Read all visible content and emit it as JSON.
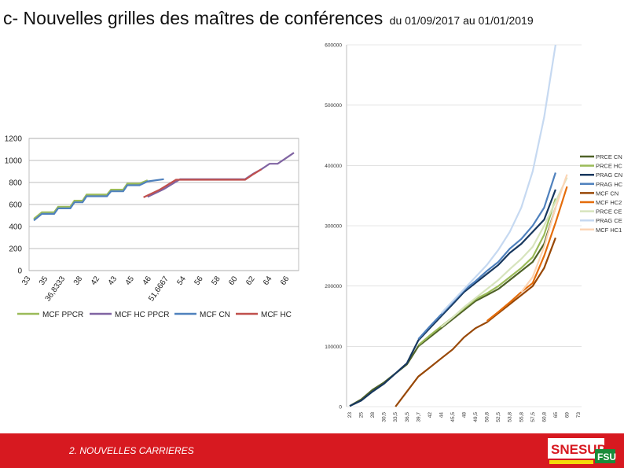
{
  "header": {
    "title": "c- Nouvelles grilles des maîtres de conférences",
    "subtitle": "du 01/09/2017 au 01/01/2019"
  },
  "footer": {
    "section": "2. NOUVELLES CARRIERES",
    "logo_main": "SNESUP",
    "logo_sub": "FSU"
  },
  "colors": {
    "footer_bg": "#d71920"
  },
  "chart_data": [
    {
      "type": "line",
      "title": "",
      "xlabel": "",
      "ylabel": "",
      "ylim": [
        0,
        1200
      ],
      "yticks": [
        "0",
        "200",
        "400",
        "600",
        "800",
        "1000",
        "1200"
      ],
      "grid": true,
      "legend": "bottom",
      "categories": [
        "33",
        "35",
        "36,8333",
        "38",
        "42",
        "43",
        "45",
        "46",
        "51,6667",
        "54",
        "56",
        "58",
        "60",
        "62",
        "64",
        "66"
      ],
      "series": [
        {
          "name": "MCF PPCR",
          "color": "#9bbb59",
          "points": [
            [
              0,
              470
            ],
            [
              1,
              530
            ],
            [
              2.5,
              530
            ],
            [
              3,
              580
            ],
            [
              4.5,
              580
            ],
            [
              5,
              635
            ],
            [
              6,
              635
            ],
            [
              6.5,
              690
            ],
            [
              9,
              690
            ],
            [
              9.5,
              735
            ],
            [
              11,
              735
            ],
            [
              11.5,
              790
            ],
            [
              13,
              790
            ],
            [
              14,
              820
            ]
          ]
        },
        {
          "name": "MCF HC PPCR",
          "color": "#8064a2",
          "points": [
            [
              14,
              670
            ],
            [
              16,
              740
            ],
            [
              18,
              830
            ],
            [
              26,
              830
            ],
            [
              27,
              880
            ],
            [
              28,
              920
            ],
            [
              29,
              970
            ],
            [
              30,
              970
            ],
            [
              31,
              1020
            ],
            [
              32,
              1070
            ]
          ]
        },
        {
          "name": "MCF CN",
          "color": "#4f81bd",
          "points": [
            [
              0,
              455
            ],
            [
              1,
              515
            ],
            [
              2.5,
              515
            ],
            [
              3,
              565
            ],
            [
              4.5,
              565
            ],
            [
              5,
              620
            ],
            [
              6,
              620
            ],
            [
              6.5,
              675
            ],
            [
              9,
              675
            ],
            [
              9.5,
              720
            ],
            [
              11,
              720
            ],
            [
              11.5,
              775
            ],
            [
              13,
              775
            ],
            [
              14,
              810
            ],
            [
              16,
              830
            ]
          ]
        },
        {
          "name": "MCF HC",
          "color": "#c0504d",
          "points": [
            [
              13.5,
              665
            ],
            [
              15.5,
              735
            ],
            [
              17.5,
              825
            ],
            [
              26,
              825
            ],
            [
              27,
              875
            ],
            [
              28,
              920
            ]
          ]
        }
      ]
    },
    {
      "type": "line",
      "title": "",
      "xlabel": "",
      "ylabel": "",
      "ylim": [
        0,
        600000
      ],
      "yticks": [
        "0",
        "100000",
        "200000",
        "300000",
        "400000",
        "500000",
        "600000"
      ],
      "grid": true,
      "legend": "right",
      "categories": [
        "23",
        "25",
        "28",
        "30,5",
        "33,5",
        "36,5",
        "39,7",
        "42",
        "44",
        "45,5",
        "48",
        "49,5",
        "50,8",
        "52,5",
        "53,8",
        "55,8",
        "57,5",
        "60,8",
        "65",
        "69",
        "73"
      ],
      "series": [
        {
          "name": "PRCE CN",
          "color": "#4f6228",
          "points": [
            [
              0,
              1000
            ],
            [
              1,
              12000
            ],
            [
              2,
              28000
            ],
            [
              3,
              40000
            ],
            [
              4,
              55000
            ],
            [
              5,
              70000
            ],
            [
              6,
              100000
            ],
            [
              7,
              115000
            ],
            [
              8,
              130000
            ],
            [
              9,
              145000
            ],
            [
              10,
              160000
            ],
            [
              11,
              175000
            ],
            [
              12,
              185000
            ],
            [
              13,
              195000
            ],
            [
              14,
              210000
            ],
            [
              15,
              225000
            ],
            [
              16,
              240000
            ],
            [
              17,
              270000
            ],
            [
              18,
              330000
            ]
          ]
        },
        {
          "name": "PRCE HC",
          "color": "#9bbb59",
          "points": [
            [
              6,
              102000
            ],
            [
              7,
              118000
            ],
            [
              8,
              133000
            ],
            [
              9,
              148000
            ],
            [
              10,
              163000
            ],
            [
              11,
              178000
            ],
            [
              12,
              188000
            ],
            [
              13,
              200000
            ],
            [
              14,
              215000
            ],
            [
              15,
              230000
            ],
            [
              16,
              248000
            ],
            [
              17,
              285000
            ],
            [
              18,
              345000
            ]
          ]
        },
        {
          "name": "PRAG CN",
          "color": "#17375e",
          "points": [
            [
              0,
              1000
            ],
            [
              1,
              10000
            ],
            [
              2,
              25000
            ],
            [
              3,
              38000
            ],
            [
              4,
              55000
            ],
            [
              5,
              72000
            ],
            [
              6,
              110000
            ],
            [
              7,
              130000
            ],
            [
              8,
              150000
            ],
            [
              9,
              170000
            ],
            [
              10,
              190000
            ],
            [
              11,
              205000
            ],
            [
              12,
              220000
            ],
            [
              13,
              235000
            ],
            [
              14,
              255000
            ],
            [
              15,
              270000
            ],
            [
              16,
              290000
            ],
            [
              17,
              310000
            ],
            [
              18,
              360000
            ]
          ]
        },
        {
          "name": "PRAG HC",
          "color": "#4f81bd",
          "points": [
            [
              6,
              112000
            ],
            [
              7,
              133000
            ],
            [
              8,
              153000
            ],
            [
              9,
              173000
            ],
            [
              10,
              193000
            ],
            [
              11,
              208000
            ],
            [
              12,
              225000
            ],
            [
              13,
              240000
            ],
            [
              14,
              262000
            ],
            [
              15,
              278000
            ],
            [
              16,
              300000
            ],
            [
              17,
              330000
            ],
            [
              18,
              388000
            ]
          ]
        },
        {
          "name": "MCF CN",
          "color": "#984807",
          "points": [
            [
              4,
              0
            ],
            [
              5,
              25000
            ],
            [
              6,
              50000
            ],
            [
              7,
              65000
            ],
            [
              8,
              80000
            ],
            [
              9,
              95000
            ],
            [
              10,
              115000
            ],
            [
              11,
              130000
            ],
            [
              12,
              140000
            ],
            [
              13,
              155000
            ],
            [
              14,
              170000
            ],
            [
              15,
              185000
            ],
            [
              16,
              200000
            ],
            [
              17,
              230000
            ],
            [
              18,
              280000
            ]
          ]
        },
        {
          "name": "MCF HC2",
          "color": "#e46c0a",
          "points": [
            [
              12,
              142000
            ],
            [
              13,
              157000
            ],
            [
              14,
              173000
            ],
            [
              15,
              190000
            ],
            [
              16,
              205000
            ],
            [
              17,
              250000
            ],
            [
              18,
              305000
            ],
            [
              19,
              365000
            ]
          ]
        },
        {
          "name": "PRCE CE",
          "color": "#d7e4bd",
          "points": [
            [
              8,
              132000
            ],
            [
              9,
              148000
            ],
            [
              10,
              165000
            ],
            [
              11,
              180000
            ],
            [
              12,
              195000
            ],
            [
              13,
              210000
            ],
            [
              14,
              228000
            ],
            [
              15,
              245000
            ],
            [
              16,
              265000
            ],
            [
              17,
              300000
            ],
            [
              18,
              340000
            ],
            [
              19,
              380000
            ]
          ]
        },
        {
          "name": "PRAG CE",
          "color": "#c6d9f1",
          "points": [
            [
              8,
              155000
            ],
            [
              9,
              175000
            ],
            [
              10,
              195000
            ],
            [
              11,
              215000
            ],
            [
              12,
              235000
            ],
            [
              13,
              260000
            ],
            [
              14,
              290000
            ],
            [
              15,
              330000
            ],
            [
              16,
              390000
            ],
            [
              17,
              480000
            ],
            [
              18,
              600000
            ]
          ]
        },
        {
          "name": "MCF HC1",
          "color": "#fcd5b5",
          "points": [
            [
              15,
              190000
            ],
            [
              16,
              215000
            ],
            [
              17,
              265000
            ],
            [
              18,
              330000
            ],
            [
              19,
              385000
            ]
          ]
        }
      ]
    }
  ]
}
